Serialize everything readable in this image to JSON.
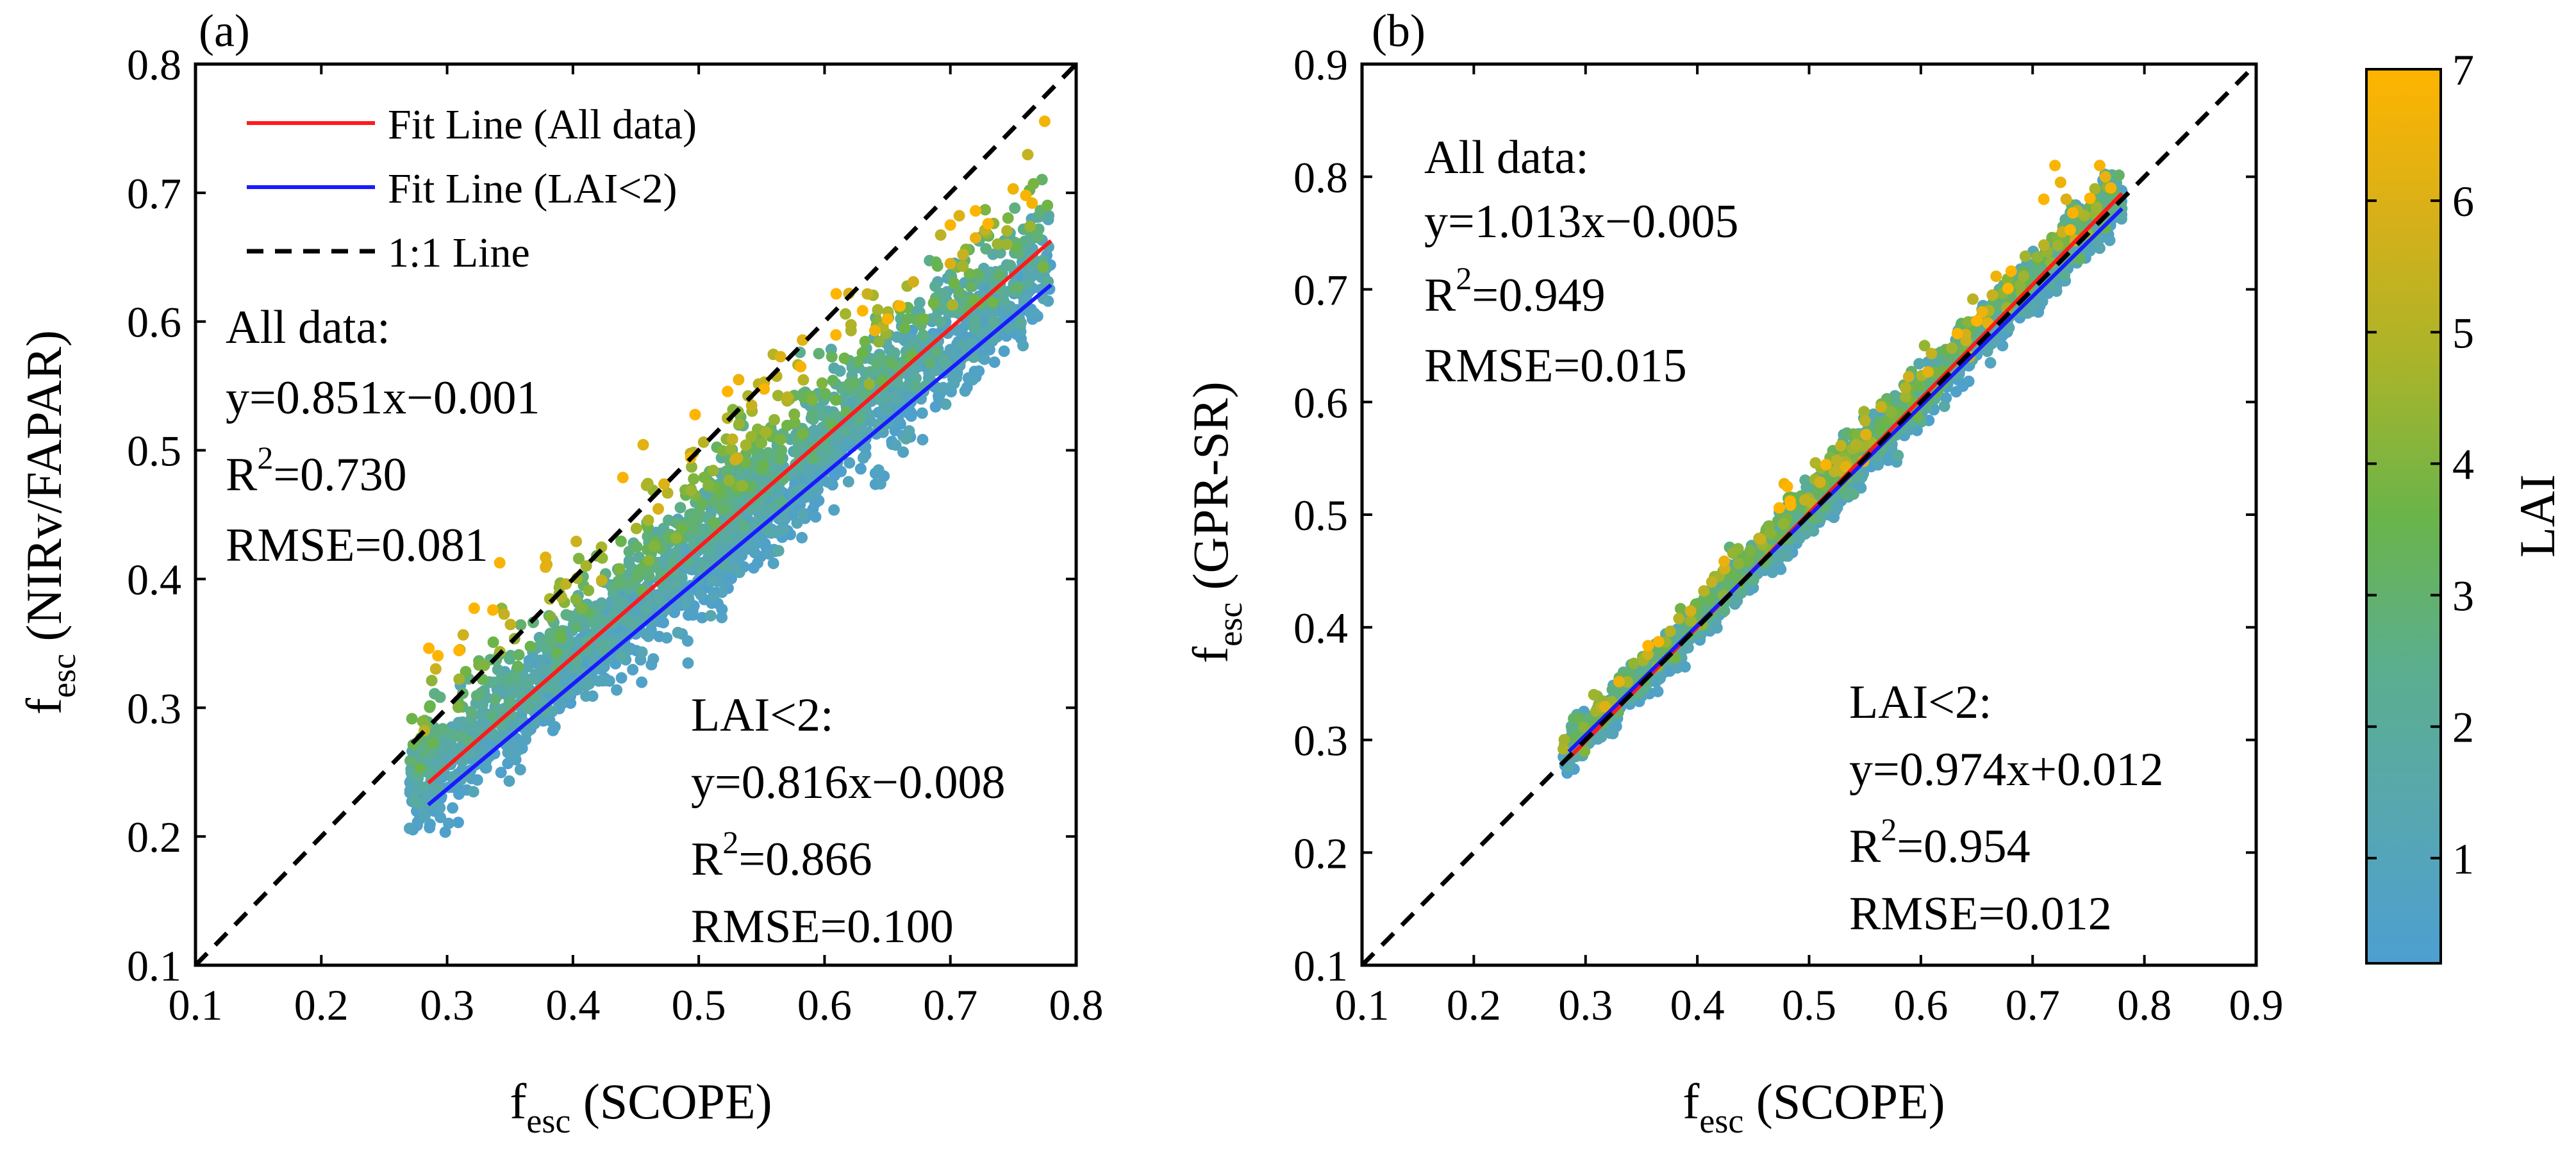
{
  "colors": {
    "all_data": "#ff1a1a",
    "lai_lt2": "#1a1aff",
    "identity": "#000000",
    "colormap": [
      "#4d9fd1",
      "#57a7b0",
      "#5bae8e",
      "#6ab44a",
      "#a8b42a",
      "#d6b01a",
      "#ffb400"
    ]
  },
  "chart_data": [
    {
      "type": "scatter",
      "panel_label": "(a)",
      "xlabel": {
        "base": "f",
        "sub": "esc",
        "rest": " (SCOPE)"
      },
      "ylabel": {
        "base": "f",
        "sub": "esc",
        "rest": " (NIRv/FAPAR)"
      },
      "xlim": [
        0.1,
        0.8
      ],
      "ylim": [
        0.1,
        0.8
      ],
      "xticks": [
        "0.1",
        "0.2",
        "0.3",
        "0.4",
        "0.5",
        "0.6",
        "0.7",
        "0.8"
      ],
      "yticks": [
        "0.1",
        "0.2",
        "0.3",
        "0.4",
        "0.5",
        "0.6",
        "0.7",
        "0.8"
      ],
      "legend": {
        "position": "top-left",
        "items": [
          {
            "label": "Fit Line (All data)",
            "style": "red-solid"
          },
          {
            "label": "Fit Line (LAI<2)",
            "style": "blue-solid"
          },
          {
            "label": "1:1 Line",
            "style": "black-dashed"
          }
        ]
      },
      "fits": {
        "all": {
          "slope": 0.851,
          "intercept": -0.001,
          "x_range": [
            0.285,
            0.78
          ]
        },
        "lai_lt2": {
          "slope": 0.816,
          "intercept": -0.008,
          "x_range": [
            0.285,
            0.78
          ]
        },
        "identity": {
          "slope": 1,
          "intercept": 0,
          "x_range": [
            0.1,
            0.8
          ]
        }
      },
      "annotations": {
        "all": {
          "position": "upper-left",
          "title": "All data:",
          "equation": "y=0.851x−0.001",
          "r2_prefix": "R",
          "r2_sup": "2",
          "r2_value": "=0.730",
          "rmse": "RMSE=0.081"
        },
        "lai_lt2": {
          "position": "lower-right",
          "title": "LAI<2:",
          "equation": "y=0.816x−0.008",
          "r2_prefix": "R",
          "r2_sup": "2",
          "r2_value": "=0.866",
          "rmse": "RMSE=0.100"
        }
      },
      "scatter_model": {
        "slope": 0.816,
        "intercept": -0.008,
        "lai_effect": 0.018,
        "spread": 0.022,
        "x_range": [
          0.27,
          0.78
        ]
      },
      "highlight_points": [
        [
          0.64,
          0.593,
          6.6
        ],
        [
          0.65,
          0.602,
          6.8
        ],
        [
          0.66,
          0.612,
          6.9
        ],
        [
          0.7,
          0.645,
          6.0
        ],
        [
          0.71,
          0.652,
          5.5
        ],
        [
          0.72,
          0.665,
          6.4
        ],
        [
          0.73,
          0.676,
          6.9
        ],
        [
          0.72,
          0.686,
          7.0
        ],
        [
          0.76,
          0.698,
          6.8
        ],
        [
          0.765,
          0.692,
          6.7
        ],
        [
          0.7,
          0.675,
          6.9
        ],
        [
          0.745,
          0.66,
          4.5
        ]
      ]
    },
    {
      "type": "scatter",
      "panel_label": "(b)",
      "xlabel": {
        "base": "f",
        "sub": "esc",
        "rest": " (SCOPE)"
      },
      "ylabel": {
        "base": "f",
        "sub": "esc",
        "rest": " (GPR-SR)"
      },
      "xlim": [
        0.1,
        0.9
      ],
      "ylim": [
        0.1,
        0.9
      ],
      "xticks": [
        "0.1",
        "0.2",
        "0.3",
        "0.4",
        "0.5",
        "0.6",
        "0.7",
        "0.8",
        "0.9"
      ],
      "yticks": [
        "0.1",
        "0.2",
        "0.3",
        "0.4",
        "0.5",
        "0.6",
        "0.7",
        "0.8",
        "0.9"
      ],
      "fits": {
        "all": {
          "slope": 1.013,
          "intercept": -0.005,
          "x_range": [
            0.285,
            0.78
          ]
        },
        "lai_lt2": {
          "slope": 0.974,
          "intercept": 0.012,
          "x_range": [
            0.285,
            0.78
          ]
        },
        "identity": {
          "slope": 1,
          "intercept": 0,
          "x_range": [
            0.1,
            0.9
          ]
        }
      },
      "annotations": {
        "all": {
          "position": "upper-left",
          "title": "All data:",
          "equation": "y=1.013x−0.005",
          "r2_prefix": "R",
          "r2_sup": "2",
          "r2_value": "=0.949",
          "rmse": "RMSE=0.015"
        },
        "lai_lt2": {
          "position": "lower-right",
          "title": "LAI<2:",
          "equation": "y=0.974x+0.012",
          "r2_prefix": "R",
          "r2_sup": "2",
          "r2_value": "=0.954",
          "rmse": "RMSE=0.012"
        }
      },
      "scatter_model": {
        "slope": 1.0,
        "intercept": 0.0,
        "lai_effect": 0.004,
        "spread": 0.012,
        "x_range": [
          0.28,
          0.78
        ]
      },
      "highlight_points": [
        [
          0.72,
          0.81,
          6.9
        ],
        [
          0.725,
          0.795,
          6.5
        ],
        [
          0.73,
          0.78,
          6.0
        ],
        [
          0.76,
          0.81,
          6.8
        ],
        [
          0.765,
          0.8,
          6.4
        ],
        [
          0.77,
          0.79,
          6.7
        ],
        [
          0.71,
          0.78,
          6.9
        ],
        [
          0.74,
          0.77,
          5.0
        ],
        [
          0.655,
          0.68,
          6.5
        ],
        [
          0.66,
          0.67,
          6.2
        ],
        [
          0.65,
          0.672,
          7.0
        ],
        [
          0.64,
          0.66,
          5.8
        ]
      ]
    }
  ],
  "colorbar": {
    "label": "LAI",
    "range": [
      0.2,
      7
    ],
    "ticks": [
      1,
      2,
      3,
      4,
      5,
      6,
      7
    ],
    "tick_labels": [
      "1",
      "2",
      "3",
      "4",
      "5",
      "6",
      "7"
    ],
    "orientation": "vertical-right"
  }
}
